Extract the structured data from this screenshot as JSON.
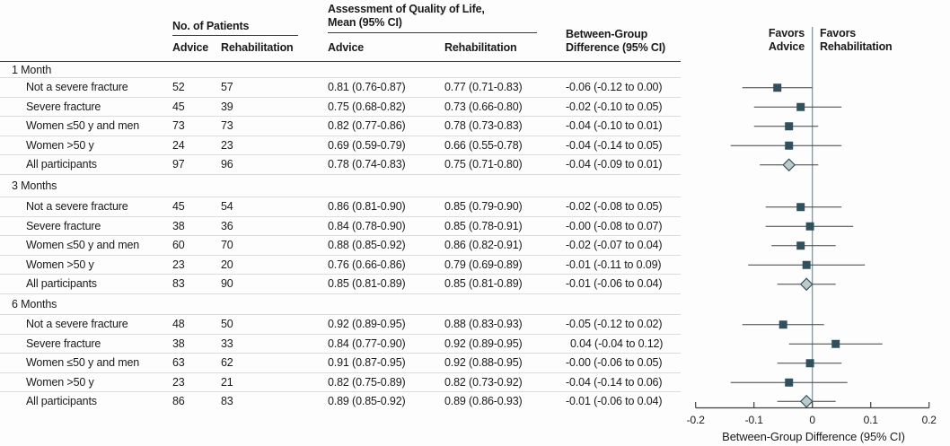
{
  "header": {
    "patients_group": "No. of Patients",
    "qol_group_line1": "Assessment of Quality of Life,",
    "qol_group_line2": "Mean (95% CI)",
    "between_line1": "Between-Group",
    "between_line2": "Difference (95% CI)",
    "col_advice": "Advice",
    "col_rehabilitation": "Rehabilitation"
  },
  "forest": {
    "favors_left": [
      "Favors",
      "Advice"
    ],
    "favors_right": [
      "Favors",
      "Rehabilitation"
    ],
    "colors": {
      "marker": "#31505d",
      "diamond_fill": "#bccaca",
      "ci_line": "#3f3f3f",
      "zero_line": "#7e8c92",
      "axis": "#3f3f3f"
    }
  },
  "chart_data": {
    "type": "forest",
    "xlabel": "Between-Group Difference (95% CI)",
    "xlim": [
      -0.2,
      0.2
    ],
    "xticks": [
      -0.2,
      -0.1,
      0,
      0.1,
      0.2
    ],
    "xtick_labels": [
      "-0.2",
      "-0.1",
      "0",
      "0.1",
      "0.2"
    ],
    "groups": [
      {
        "label": "1 Month",
        "rows": [
          {
            "label": "Not a severe fracture",
            "n_advice": 52,
            "n_rehab": 57,
            "qol_advice": "0.81 (0.76-0.87)",
            "qol_rehab": "0.77 (0.71-0.83)",
            "diff_text": "-0.06 (-0.12 to 0.00)",
            "est": -0.06,
            "ci": [
              -0.12,
              0.0
            ],
            "marker": "square"
          },
          {
            "label": "Severe fracture",
            "n_advice": 45,
            "n_rehab": 39,
            "qol_advice": "0.75 (0.68-0.82)",
            "qol_rehab": "0.73 (0.66-0.80)",
            "diff_text": "-0.02 (-0.10 to 0.05)",
            "est": -0.02,
            "ci": [
              -0.1,
              0.05
            ],
            "marker": "square"
          },
          {
            "label": "Women ≤50 y and men",
            "n_advice": 73,
            "n_rehab": 73,
            "qol_advice": "0.82 (0.77-0.86)",
            "qol_rehab": "0.78 (0.73-0.83)",
            "diff_text": "-0.04 (-0.10 to 0.01)",
            "est": -0.04,
            "ci": [
              -0.1,
              0.01
            ],
            "marker": "square"
          },
          {
            "label": "Women >50 y",
            "n_advice": 24,
            "n_rehab": 23,
            "qol_advice": "0.69 (0.59-0.79)",
            "qol_rehab": "0.66 (0.55-0.78)",
            "diff_text": "-0.04 (-0.14 to 0.05)",
            "est": -0.04,
            "ci": [
              -0.14,
              0.05
            ],
            "marker": "square"
          },
          {
            "label": "All participants",
            "n_advice": 97,
            "n_rehab": 96,
            "qol_advice": "0.78 (0.74-0.83)",
            "qol_rehab": "0.75 (0.71-0.80)",
            "diff_text": "-0.04 (-0.09 to 0.01)",
            "est": -0.04,
            "ci": [
              -0.09,
              0.01
            ],
            "marker": "diamond"
          }
        ]
      },
      {
        "label": "3 Months",
        "rows": [
          {
            "label": "Not a severe fracture",
            "n_advice": 45,
            "n_rehab": 54,
            "qol_advice": "0.86 (0.81-0.90)",
            "qol_rehab": "0.85 (0.79-0.90)",
            "diff_text": "-0.02 (-0.08 to 0.05)",
            "est": -0.02,
            "ci": [
              -0.08,
              0.05
            ],
            "marker": "square"
          },
          {
            "label": "Severe fracture",
            "n_advice": 38,
            "n_rehab": 36,
            "qol_advice": "0.84 (0.78-0.90)",
            "qol_rehab": "0.85 (0.78-0.91)",
            "diff_text": "-0.00 (-0.08 to 0.07)",
            "est": -0.004,
            "ci": [
              -0.08,
              0.07
            ],
            "marker": "square"
          },
          {
            "label": "Women ≤50 y and men",
            "n_advice": 60,
            "n_rehab": 70,
            "qol_advice": "0.88 (0.85-0.92)",
            "qol_rehab": "0.86 (0.82-0.91)",
            "diff_text": "-0.02 (-0.07 to 0.04)",
            "est": -0.02,
            "ci": [
              -0.07,
              0.04
            ],
            "marker": "square"
          },
          {
            "label": "Women >50 y",
            "n_advice": 23,
            "n_rehab": 20,
            "qol_advice": "0.76 (0.66-0.86)",
            "qol_rehab": "0.79 (0.69-0.89)",
            "diff_text": "-0.01 (-0.11 to 0.09)",
            "est": -0.01,
            "ci": [
              -0.11,
              0.09
            ],
            "marker": "square"
          },
          {
            "label": "All participants",
            "n_advice": 83,
            "n_rehab": 90,
            "qol_advice": "0.85 (0.81-0.89)",
            "qol_rehab": "0.85 (0.81-0.89)",
            "diff_text": "-0.01 (-0.06 to 0.04)",
            "est": -0.01,
            "ci": [
              -0.06,
              0.04
            ],
            "marker": "diamond"
          }
        ]
      },
      {
        "label": "6 Months",
        "rows": [
          {
            "label": "Not a severe fracture",
            "n_advice": 48,
            "n_rehab": 50,
            "qol_advice": "0.92 (0.89-0.95)",
            "qol_rehab": "0.88 (0.83-0.93)",
            "diff_text": "-0.05 (-0.12 to 0.02)",
            "est": -0.05,
            "ci": [
              -0.12,
              0.02
            ],
            "marker": "square"
          },
          {
            "label": "Severe fracture",
            "n_advice": 38,
            "n_rehab": 33,
            "qol_advice": "0.84 (0.77-0.90)",
            "qol_rehab": "0.92 (0.89-0.95)",
            "diff_text": "0.04 (-0.04 to 0.12)",
            "est": 0.04,
            "ci": [
              -0.04,
              0.12
            ],
            "marker": "square"
          },
          {
            "label": "Women ≤50 y and men",
            "n_advice": 63,
            "n_rehab": 62,
            "qol_advice": "0.91 (0.87-0.95)",
            "qol_rehab": "0.92 (0.88-0.95)",
            "diff_text": "-0.00 (-0.06 to 0.05)",
            "est": -0.004,
            "ci": [
              -0.06,
              0.05
            ],
            "marker": "square"
          },
          {
            "label": "Women >50 y",
            "n_advice": 23,
            "n_rehab": 21,
            "qol_advice": "0.82 (0.75-0.89)",
            "qol_rehab": "0.82 (0.73-0.92)",
            "diff_text": "-0.04 (-0.14 to 0.06)",
            "est": -0.04,
            "ci": [
              -0.14,
              0.06
            ],
            "marker": "square"
          },
          {
            "label": "All participants",
            "n_advice": 86,
            "n_rehab": 83,
            "qol_advice": "0.89 (0.85-0.92)",
            "qol_rehab": "0.89 (0.86-0.93)",
            "diff_text": "-0.01 (-0.06 to 0.04)",
            "est": -0.01,
            "ci": [
              -0.06,
              0.04
            ],
            "marker": "diamond"
          }
        ]
      }
    ]
  }
}
